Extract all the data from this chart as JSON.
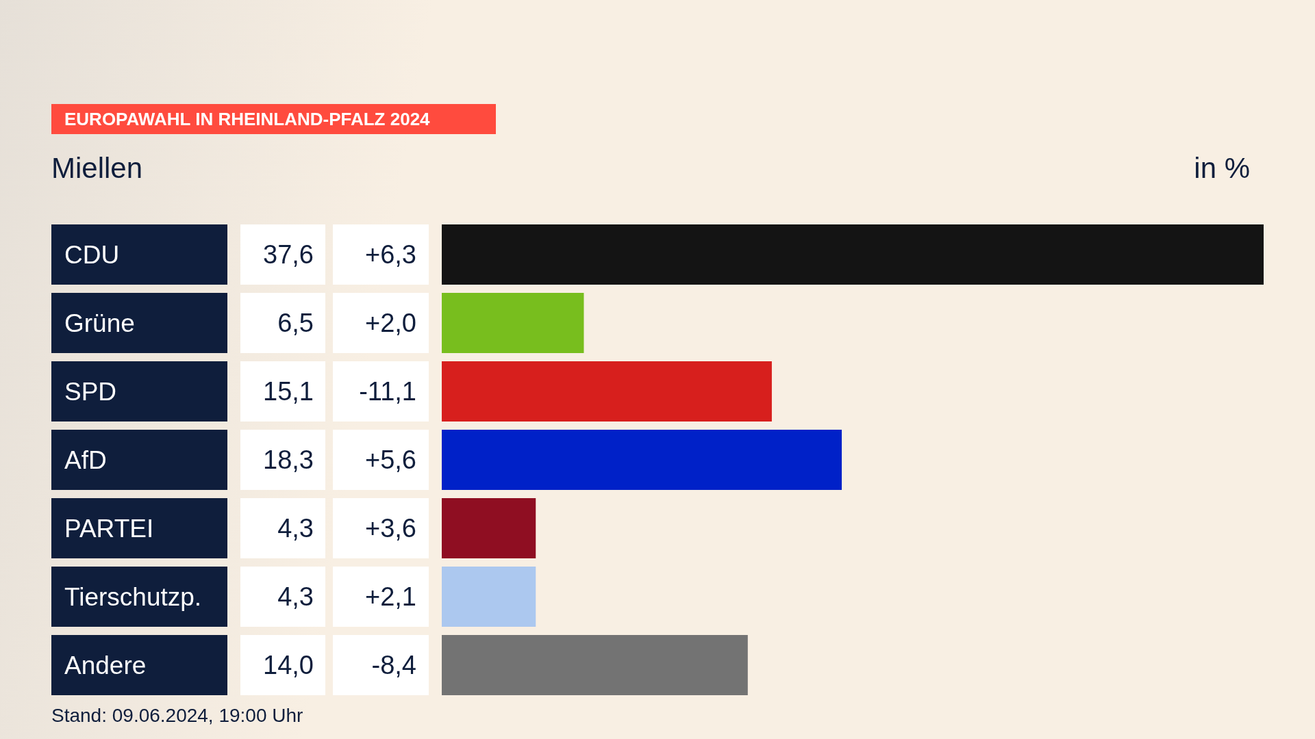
{
  "chart_data": {
    "type": "bar",
    "orientation": "horizontal",
    "title": "EUROPAWAHL IN RHEINLAND-PFALZ 2024",
    "subtitle": "Miellen",
    "categories": [
      "CDU",
      "Grüne",
      "SPD",
      "AfD",
      "PARTEI",
      "Tierschutzp.",
      "Andere"
    ],
    "values": [
      37.6,
      6.5,
      15.1,
      18.3,
      4.3,
      4.3,
      14.0
    ],
    "value_labels": [
      "37,6",
      "6,5",
      "15,1",
      "18,3",
      "4,3",
      "4,3",
      "14,0"
    ],
    "colors": [
      "#141414",
      "#78be1e",
      "#d71f1d",
      "#0021c8",
      "#8f0e22",
      "#acc8ef",
      "#737373"
    ],
    "annotations": [
      "in %",
      "Stand: 09.06.2024, 19:00 Uhr",
      "+6,3",
      "+2,0",
      "-11,1",
      "+5,6",
      "+3,6",
      "+2,1",
      "-8,4"
    ],
    "grid": false,
    "legend": false
  }
}
